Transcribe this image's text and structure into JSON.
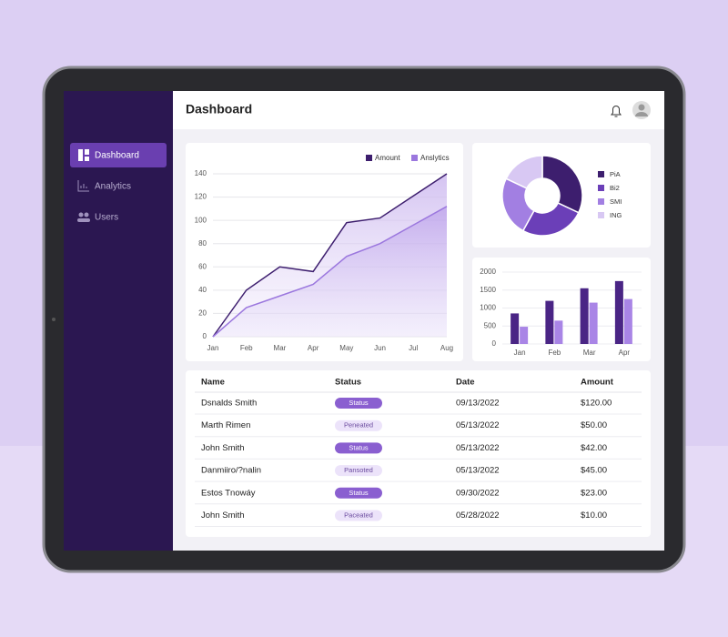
{
  "sidebar": {
    "items": [
      "Dashboard",
      "Analytics",
      "Users"
    ]
  },
  "header": {
    "title": "Dashboard"
  },
  "charts": [
    {
      "type": "line",
      "categories": [
        "Jan",
        "Feb",
        "Mar",
        "Apr",
        "May",
        "Jun",
        "Jul",
        "Aug"
      ],
      "series": [
        {
          "name": "Amount",
          "color": "#3d1e6e",
          "values": [
            0,
            40,
            60,
            56,
            98,
            102,
            121,
            140
          ]
        },
        {
          "name": "Anslytics",
          "color": "#9b77de",
          "values": [
            0,
            25,
            35,
            45,
            69,
            80,
            96,
            112
          ]
        }
      ],
      "ylim": [
        0,
        140
      ],
      "yticks": [
        0,
        20,
        40,
        60,
        80,
        100,
        120,
        140
      ],
      "grid": true
    },
    {
      "type": "pie",
      "categories": [
        "PiA",
        "Bi2",
        "SMI",
        "ING"
      ],
      "values": [
        32,
        26,
        24,
        18
      ],
      "colors": [
        "#3d1e6e",
        "#6b3fb8",
        "#a27fe2",
        "#d8c8f3"
      ]
    },
    {
      "type": "bar",
      "categories": [
        "Jan",
        "Feb",
        "Mar",
        "Apr"
      ],
      "series": [
        {
          "color": "#4a2585",
          "values": [
            850,
            1200,
            1550,
            1750
          ]
        },
        {
          "color": "#a985e6",
          "values": [
            480,
            650,
            1150,
            1250
          ]
        }
      ],
      "ylim": [
        0,
        2000
      ],
      "yticks": [
        0,
        500,
        1000,
        1500,
        2000
      ],
      "grid": true
    }
  ],
  "table": {
    "columns": [
      "Name",
      "Status",
      "Date",
      "Amount"
    ],
    "rows": [
      [
        "Dsnalds Smith",
        "Status",
        "09/13/2022",
        "$120.00"
      ],
      [
        "Marth Rimen",
        "Peneated",
        "05/13/2022",
        "$50.00"
      ],
      [
        "John Smith",
        "Status",
        "05/13/2022",
        "$42.00"
      ],
      [
        "Danmiiro/?nalin",
        "Pansoted",
        "05/13/2022",
        "$45.00"
      ],
      [
        "Estos Tnowáy",
        "Status",
        "09/30/2022",
        "$23.00"
      ],
      [
        "John Smith",
        "Paceated",
        "05/28/2022",
        "$10.00"
      ]
    ],
    "status_colors": [
      "#8a5fd0",
      "#ece3fa",
      "#8a5fd0",
      "#ece3fa",
      "#8a5fd0",
      "#ece3fa"
    ]
  }
}
